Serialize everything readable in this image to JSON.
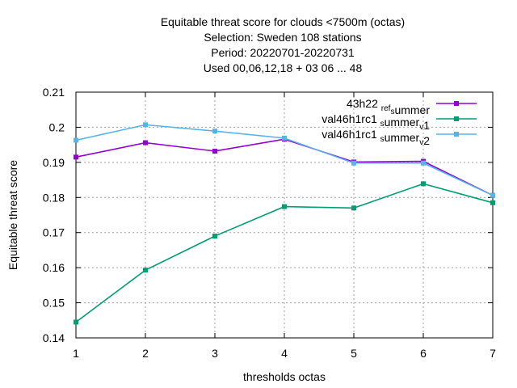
{
  "chart_data": {
    "type": "line",
    "title": [
      "Equitable threat score  for clouds <7500m (octas)",
      "Selection: Sweden    108 stations",
      "Period: 20220701-20220731",
      "Used  00,06,12,18  + 03 06 ... 48"
    ],
    "xlabel": "thresholds octas",
    "ylabel": "Equitable threat score",
    "xlim": [
      1,
      7
    ],
    "ylim": [
      0.14,
      0.21
    ],
    "xticks": [
      "1",
      "2",
      "3",
      "4",
      "5",
      "6",
      "7"
    ],
    "yticks": [
      "0.14",
      "0.15",
      "0.16",
      "0.17",
      "0.18",
      "0.19",
      "0.2",
      "0.21"
    ],
    "grid": true,
    "legend_position": "top-right",
    "x": [
      1,
      2,
      3,
      4,
      5,
      6,
      7
    ],
    "series": [
      {
        "name": "43h22_ref_summer",
        "legend_parts": [
          [
            "43h22 ",
            ""
          ],
          [
            "ref",
            "sub"
          ],
          [
            "s",
            "sub"
          ],
          [
            "ummer",
            ""
          ]
        ],
        "color": "#9400d3",
        "values": [
          0.1915,
          0.1956,
          0.1932,
          0.1966,
          0.1901,
          0.1903,
          0.1806
        ]
      },
      {
        "name": "val46h1rc1_summer_v1",
        "legend_parts": [
          [
            "val46h1rc1 ",
            ""
          ],
          [
            "s",
            "sub"
          ],
          [
            "ummer",
            ""
          ],
          [
            "v",
            "sub"
          ],
          [
            "1",
            ""
          ]
        ],
        "color": "#009e73",
        "values": [
          0.1445,
          0.1593,
          0.169,
          0.1774,
          0.177,
          0.1839,
          0.1785
        ]
      },
      {
        "name": "val46h1rc1_summer_v2",
        "legend_parts": [
          [
            "val46h1rc1 ",
            ""
          ],
          [
            "s",
            "sub"
          ],
          [
            "ummer",
            ""
          ],
          [
            "v",
            "sub"
          ],
          [
            "2",
            ""
          ]
        ],
        "color": "#56b4e9",
        "values": [
          0.1963,
          0.2007,
          0.1989,
          0.1969,
          0.1898,
          0.1898,
          0.1806
        ]
      }
    ]
  }
}
